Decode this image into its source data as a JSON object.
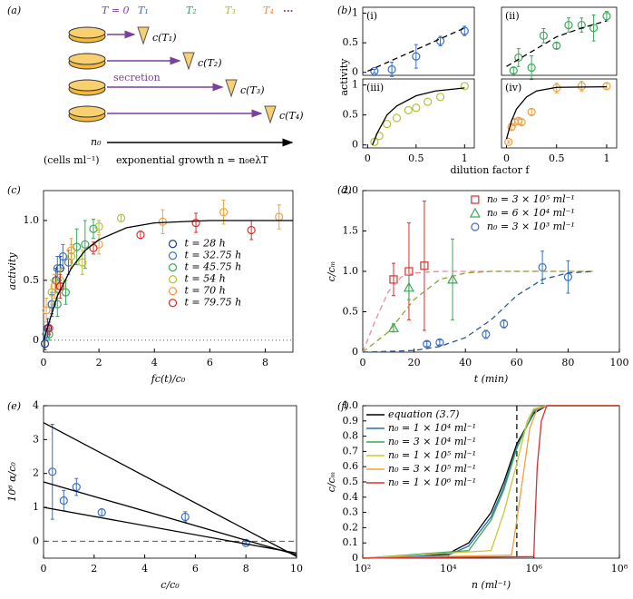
{
  "diagram": {
    "panel": "(a)",
    "time_labels": [
      "T = 0",
      "T₁",
      "T₂",
      "T₃",
      "T₄",
      "..."
    ],
    "concentrations": [
      "c(T₁)",
      "c(T₂)",
      "c(T₃)",
      "c(T₄)"
    ],
    "process": "secretion",
    "initial": "n₀",
    "units": "(cells ml⁻¹)",
    "growth": "exponential growth  n = n₀eλT"
  },
  "chart_data": [
    {
      "panel": "(b)",
      "type": "scatter",
      "xlabel": "dilution factor f",
      "ylabel": "activity",
      "subplots": [
        {
          "label": "(i)",
          "xlim": [
            -0.05,
            1.1
          ],
          "ylim": [
            -0.05,
            1.1
          ],
          "yticks": [
            0,
            0.5,
            1
          ],
          "series": [
            {
              "style": "points",
              "color": "#3a6fc0",
              "x": [
                0.07,
                0.25,
                0.5,
                0.75,
                1.0
              ],
              "values": [
                0.02,
                0.05,
                0.27,
                0.53,
                0.7
              ],
              "errors": [
                0.03,
                0.12,
                0.2,
                0.08,
                0.08
              ]
            },
            {
              "style": "dashed",
              "color": "#000000",
              "x": [
                0,
                1
              ],
              "values": [
                0.02,
                0.75
              ]
            }
          ]
        },
        {
          "label": "(ii)",
          "xlim": [
            -0.05,
            1.1
          ],
          "ylim": [
            -0.05,
            1.1
          ],
          "series": [
            {
              "style": "points",
              "color": "#3aa957",
              "x": [
                0.07,
                0.12,
                0.25,
                0.37,
                0.5,
                0.62,
                0.75,
                0.87,
                1.0
              ],
              "values": [
                0.03,
                0.25,
                0.08,
                0.62,
                0.45,
                0.8,
                0.8,
                0.75,
                0.95
              ],
              "errors": [
                0.05,
                0.15,
                0.2,
                0.12,
                0.05,
                0.12,
                0.12,
                0.22,
                0.08
              ]
            },
            {
              "style": "dashed",
              "color": "#000000",
              "x": [
                0,
                0.25,
                0.5,
                0.75,
                1
              ],
              "values": [
                0.1,
                0.35,
                0.6,
                0.75,
                0.87
              ]
            }
          ]
        },
        {
          "label": "(iii)",
          "xlim": [
            -0.05,
            1.1
          ],
          "ylim": [
            -0.05,
            1.1
          ],
          "xticks": [
            0,
            0.5,
            1
          ],
          "yticks": [
            0,
            0.5,
            1
          ],
          "series": [
            {
              "style": "points",
              "color": "#b5c234",
              "x": [
                0.07,
                0.12,
                0.2,
                0.3,
                0.42,
                0.5,
                0.62,
                0.75,
                1.0
              ],
              "values": [
                0.05,
                0.15,
                0.35,
                0.45,
                0.58,
                0.62,
                0.72,
                0.8,
                0.98
              ]
            },
            {
              "style": "line",
              "color": "#000000",
              "x": [
                0.05,
                0.1,
                0.2,
                0.3,
                0.5,
                0.7,
                1.0
              ],
              "values": [
                0,
                0.2,
                0.5,
                0.65,
                0.82,
                0.9,
                0.95
              ]
            }
          ]
        },
        {
          "label": "(iv)",
          "xlim": [
            -0.05,
            1.1
          ],
          "ylim": [
            -0.05,
            1.1
          ],
          "xticks": [
            0,
            0.5,
            1
          ],
          "series": [
            {
              "style": "points",
              "color": "#f0a040",
              "x": [
                0.02,
                0.05,
                0.08,
                0.12,
                0.15,
                0.25,
                0.5,
                0.75,
                1.0
              ],
              "values": [
                0.05,
                0.3,
                0.38,
                0.4,
                0.38,
                0.55,
                0.95,
                0.98,
                0.98
              ],
              "errors": [
                0.02,
                0.05,
                0.05,
                0.05,
                0.05,
                0.05,
                0.08,
                0.08,
                0.05
              ]
            },
            {
              "style": "line",
              "color": "#000000",
              "x": [
                0,
                0.05,
                0.1,
                0.2,
                0.3,
                0.5,
                1.0
              ],
              "values": [
                0.1,
                0.4,
                0.6,
                0.8,
                0.9,
                0.96,
                0.97
              ]
            }
          ]
        }
      ]
    },
    {
      "panel": "(c)",
      "type": "scatter",
      "xlabel": "fc(t)/c₀",
      "ylabel": "activity",
      "legend": "center-right",
      "xlim": [
        0,
        9
      ],
      "ylim": [
        -0.1,
        1.25
      ],
      "xticks": [
        0,
        2,
        4,
        6,
        8
      ],
      "yticks": [
        0,
        0.5,
        {
          "value": 1,
          "label": "1.0"
        }
      ],
      "hline": {
        "y": 0,
        "style": "dotted"
      },
      "series": [
        {
          "name": "t = 28 h",
          "style": "points",
          "color": "#1f3d8f",
          "x": [
            0.05,
            0.15,
            0.3,
            0.45,
            0.6
          ],
          "values": [
            -0.03,
            0.1,
            0.3,
            0.5,
            0.6
          ],
          "errors": [
            0.05,
            0.08,
            0.08,
            0.1,
            0.1
          ]
        },
        {
          "name": "t = 32.75 h",
          "style": "points",
          "color": "#3b74c4",
          "x": [
            0.1,
            0.3,
            0.5,
            0.7,
            0.9
          ],
          "values": [
            0.05,
            0.3,
            0.6,
            0.7,
            0.65
          ],
          "errors": [
            0.05,
            0.1,
            0.1,
            0.1,
            0.1
          ]
        },
        {
          "name": "t = 45.75 h",
          "style": "points",
          "color": "#3aa957",
          "x": [
            0.2,
            0.5,
            0.8,
            1.2,
            1.5,
            1.8
          ],
          "values": [
            0.05,
            0.3,
            0.4,
            0.78,
            0.8,
            0.93
          ],
          "errors": [
            0.05,
            0.1,
            0.1,
            0.15,
            0.2,
            0.08
          ]
        },
        {
          "name": "t = 54 h",
          "style": "points",
          "color": "#b5c234",
          "x": [
            0.3,
            0.6,
            1.0,
            1.4,
            2.0,
            2.8
          ],
          "values": [
            0.4,
            0.5,
            0.7,
            0.65,
            0.95,
            1.02
          ],
          "errors": [
            0.1,
            0.1,
            0.1,
            0.1,
            0.05,
            0.03
          ]
        },
        {
          "name": "t = 70 h",
          "style": "points",
          "color": "#f0a040",
          "x": [
            0.1,
            0.4,
            1.0,
            2.0,
            4.3,
            6.5,
            8.5
          ],
          "values": [
            0.25,
            0.45,
            0.75,
            0.8,
            0.99,
            1.07,
            1.03
          ],
          "errors": [
            0.1,
            0.1,
            0.1,
            0.08,
            0.1,
            0.1,
            0.1
          ]
        },
        {
          "name": "t = 79.75 h",
          "style": "points",
          "color": "#d83030",
          "x": [
            0.2,
            0.6,
            1.8,
            3.5,
            5.5,
            7.5
          ],
          "values": [
            0.1,
            0.45,
            0.77,
            0.88,
            0.98,
            0.92
          ],
          "errors": [
            0.05,
            0.1,
            0.05,
            0.03,
            0.08,
            0.08
          ]
        },
        {
          "style": "line",
          "color": "#000000",
          "x": [
            0,
            0.5,
            1,
            1.5,
            2,
            3,
            4,
            5,
            6,
            9
          ],
          "values": [
            0,
            0.37,
            0.6,
            0.75,
            0.84,
            0.94,
            0.98,
            0.99,
            1.0,
            1.0
          ]
        }
      ]
    },
    {
      "panel": "(d)",
      "type": "scatter",
      "xlabel": "t (min)",
      "ylabel": "c/cₘ",
      "legend": "upper-center",
      "xlim": [
        0,
        100
      ],
      "ylim": [
        0,
        2
      ],
      "xticks": [
        0,
        20,
        40,
        60,
        80,
        100
      ],
      "yticks": [
        0,
        0.5,
        {
          "value": 1,
          "label": "1.0"
        },
        1.5,
        {
          "value": 2,
          "label": "2.0"
        }
      ],
      "series": [
        {
          "name": "n₀ = 3 × 10⁵ ml⁻¹",
          "style": "points",
          "marker": "square",
          "color": "#d83030",
          "x": [
            12,
            18,
            24
          ],
          "values": [
            0.9,
            1.0,
            1.07
          ],
          "errors": [
            0.2,
            0.6,
            0.8
          ]
        },
        {
          "name": "n₀ = 6 × 10⁴ ml⁻¹",
          "style": "points",
          "marker": "triangle",
          "color": "#3aa957",
          "x": [
            12,
            18,
            35
          ],
          "values": [
            0.3,
            0.8,
            0.9
          ],
          "errors": [
            0.05,
            0.15,
            0.5
          ]
        },
        {
          "name": "n₀ = 3 × 10³ ml⁻¹",
          "style": "points",
          "marker": "circle",
          "color": "#3a6fc0",
          "x": [
            25,
            30,
            48,
            55,
            70,
            80
          ],
          "values": [
            0.1,
            0.12,
            0.22,
            0.35,
            1.05,
            0.93
          ],
          "errors": [
            0.03,
            0.03,
            0.05,
            0.05,
            0.2,
            0.2
          ]
        },
        {
          "style": "dashed",
          "color": "#f08a9a",
          "x": [
            0,
            5,
            10,
            15,
            20,
            30,
            90
          ],
          "values": [
            0,
            0.4,
            0.75,
            0.93,
            0.98,
            1,
            1
          ]
        },
        {
          "style": "dashed",
          "color": "#8aa83a",
          "x": [
            0,
            10,
            20,
            30,
            40,
            50,
            90
          ],
          "values": [
            0,
            0.25,
            0.65,
            0.9,
            0.98,
            1,
            1
          ]
        },
        {
          "style": "dashed",
          "color": "#2a5a9a",
          "x": [
            0,
            20,
            30,
            40,
            50,
            60,
            70,
            80,
            90
          ],
          "values": [
            0,
            0.02,
            0.07,
            0.18,
            0.4,
            0.7,
            0.9,
            0.98,
            1
          ]
        }
      ]
    },
    {
      "panel": "(e)",
      "type": "scatter",
      "xlabel": "c/c₀",
      "ylabel": "10⁶ α/c₀",
      "xlim": [
        0,
        10
      ],
      "ylim": [
        -0.5,
        4
      ],
      "xticks": [
        0,
        2,
        4,
        6,
        8,
        10
      ],
      "yticks": [
        0,
        1,
        2,
        3,
        4
      ],
      "hline": {
        "y": 0,
        "style": "dashed"
      },
      "series": [
        {
          "style": "points",
          "color": "#3a6fc0",
          "x": [
            0.35,
            0.8,
            1.3,
            2.3,
            5.6,
            8.0
          ],
          "values": [
            2.05,
            1.2,
            1.6,
            0.85,
            0.72,
            -0.05
          ],
          "errors": [
            1.4,
            0.3,
            0.25,
            0.1,
            0.15,
            0.05
          ]
        },
        {
          "style": "line",
          "color": "#000000",
          "x": [
            0,
            10
          ],
          "values": [
            3.5,
            -0.45
          ]
        },
        {
          "style": "line",
          "color": "#000000",
          "x": [
            0,
            10
          ],
          "values": [
            1.75,
            -0.4
          ]
        },
        {
          "style": "line",
          "color": "#000000",
          "x": [
            0,
            10
          ],
          "values": [
            1.0,
            -0.35
          ]
        }
      ]
    },
    {
      "panel": "(f)",
      "type": "line",
      "xlabel": "n (ml⁻¹)",
      "ylabel": "c/cₘ",
      "legend": "upper-left",
      "xscale": "log",
      "xlim": [
        100,
        100000000
      ],
      "ylim": [
        0,
        1
      ],
      "xticks": [
        {
          "value": 100,
          "label": "10²"
        },
        {
          "value": 10000,
          "label": "10⁴"
        },
        {
          "value": 1000000,
          "label": "10⁶"
        },
        {
          "value": 100000000,
          "label": "10⁸"
        }
      ],
      "yticks": [
        0,
        0.1,
        0.2,
        0.3,
        0.4,
        0.5,
        0.6,
        0.7,
        0.8,
        0.9,
        {
          "value": 1,
          "label": "1.0"
        }
      ],
      "vline": {
        "x": 400000,
        "style": "dashed"
      },
      "series": [
        {
          "name": "equation (3.7)",
          "style": "line",
          "color": "#000000",
          "x": [
            100,
            1000,
            10000,
            30000,
            100000,
            200000,
            400000,
            1000000,
            2000000,
            100000000
          ],
          "values": [
            0,
            0.003,
            0.03,
            0.1,
            0.3,
            0.5,
            0.75,
            0.95,
            1,
            1
          ]
        },
        {
          "name": "n₀ = 1 × 10⁴ ml⁻¹",
          "style": "line",
          "color": "#2a6fb0",
          "x": [
            100,
            10000,
            30000,
            100000,
            200000,
            400000,
            1000000,
            2000000,
            100000000
          ],
          "values": [
            0,
            0.02,
            0.08,
            0.27,
            0.47,
            0.73,
            0.96,
            1,
            1
          ]
        },
        {
          "name": "n₀ = 3 × 10⁴ ml⁻¹",
          "style": "line",
          "color": "#3aa957",
          "x": [
            100,
            30000,
            100000,
            200000,
            400000,
            1000000,
            2000000,
            100000000
          ],
          "values": [
            0,
            0.05,
            0.25,
            0.45,
            0.72,
            0.97,
            1,
            1
          ]
        },
        {
          "name": "n₀ = 1 × 10⁵ ml⁻¹",
          "style": "line",
          "color": "#c8c83a",
          "x": [
            100,
            100000,
            200000,
            400000,
            700000,
            1000000,
            2000000,
            100000000
          ],
          "values": [
            0,
            0.05,
            0.3,
            0.62,
            0.9,
            0.98,
            1,
            1
          ]
        },
        {
          "name": "n₀ = 3 × 10⁵ ml⁻¹",
          "style": "line",
          "color": "#f0a040",
          "x": [
            100,
            300000,
            400000,
            600000,
            800000,
            1200000,
            2000000,
            100000000
          ],
          "values": [
            0,
            0.02,
            0.25,
            0.6,
            0.85,
            0.98,
            1,
            1
          ]
        },
        {
          "name": "n₀ = 1 × 10⁶ ml⁻¹",
          "style": "line",
          "color": "#d83030",
          "x": [
            100,
            1000000,
            1050000,
            1200000,
            1500000,
            2000000,
            100000000
          ],
          "values": [
            0,
            0.01,
            0.2,
            0.6,
            0.9,
            1,
            1
          ]
        }
      ]
    }
  ]
}
